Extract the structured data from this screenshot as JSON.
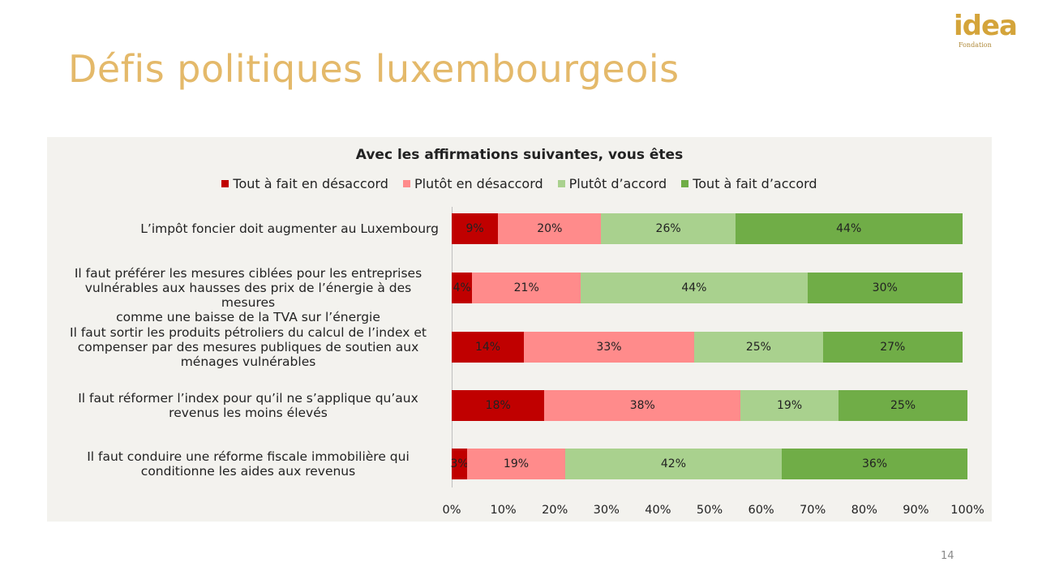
{
  "slide": {
    "title": "Défis politiques luxembourgeois",
    "page_number": "14",
    "logo": {
      "word": "idea",
      "sub": "Fondation"
    }
  },
  "chart_data": {
    "type": "bar",
    "orientation": "horizontal",
    "stacked": true,
    "percent": true,
    "title": "Avec les affirmations suivantes, vous êtes",
    "categories": [
      "L’impôt foncier doit augmenter au Luxembourg",
      "Il faut préférer les mesures ciblées pour les entreprises vulnérables aux hausses des prix de l’énergie à des mesures comme une baisse de la TVA sur l’énergie",
      "Il faut sortir les produits pétroliers du calcul de l’index et compenser par des mesures publiques de soutien aux ménages vulnérables",
      "Il faut réformer l’index pour qu’il ne s’applique qu’aux revenus les moins élevés",
      "Il faut conduire une réforme fiscale immobilière qui conditionne les aides aux revenus"
    ],
    "category_lines": [
      [
        "L’impôt foncier doit augmenter au Luxembourg"
      ],
      [
        "Il faut préférer les mesures ciblées pour les entreprises",
        "vulnérables aux hausses des prix de l’énergie à des mesures",
        "comme une baisse de la TVA sur l’énergie"
      ],
      [
        "Il faut sortir les produits pétroliers du calcul de l’index et",
        "compenser par des mesures publiques de soutien aux",
        "ménages vulnérables"
      ],
      [
        "Il faut réformer l’index pour qu’il ne s’applique qu’aux",
        "revenus les moins élevés"
      ],
      [
        "Il faut conduire une réforme fiscale immobilière qui",
        "conditionne les aides aux revenus"
      ]
    ],
    "series": [
      {
        "name": "Tout à fait en désaccord",
        "color": "#c00000",
        "values": [
          9,
          4,
          14,
          18,
          3
        ],
        "labels": [
          "9%",
          "4%",
          "14%",
          "18%",
          "3%"
        ]
      },
      {
        "name": "Plutôt en désaccord",
        "color": "#ff8b8b",
        "values": [
          20,
          21,
          33,
          38,
          19
        ],
        "labels": [
          "20%",
          "21%",
          "33%",
          "38%",
          "19%"
        ]
      },
      {
        "name": "Plutôt d’accord",
        "color": "#a9d18e",
        "values": [
          26,
          44,
          25,
          19,
          42
        ],
        "labels": [
          "26%",
          "44%",
          "25%",
          "19%",
          "42%"
        ]
      },
      {
        "name": "Tout à fait d’accord",
        "color": "#70ad47",
        "values": [
          44,
          30,
          27,
          25,
          36
        ],
        "labels": [
          "44%",
          "30%",
          "27%",
          "25%",
          "36%"
        ]
      }
    ],
    "x_ticks": [
      "0%",
      "10%",
      "20%",
      "30%",
      "40%",
      "50%",
      "60%",
      "70%",
      "80%",
      "90%",
      "100%"
    ],
    "xlim": [
      0,
      100
    ],
    "legend_position": "top",
    "grid": false
  }
}
